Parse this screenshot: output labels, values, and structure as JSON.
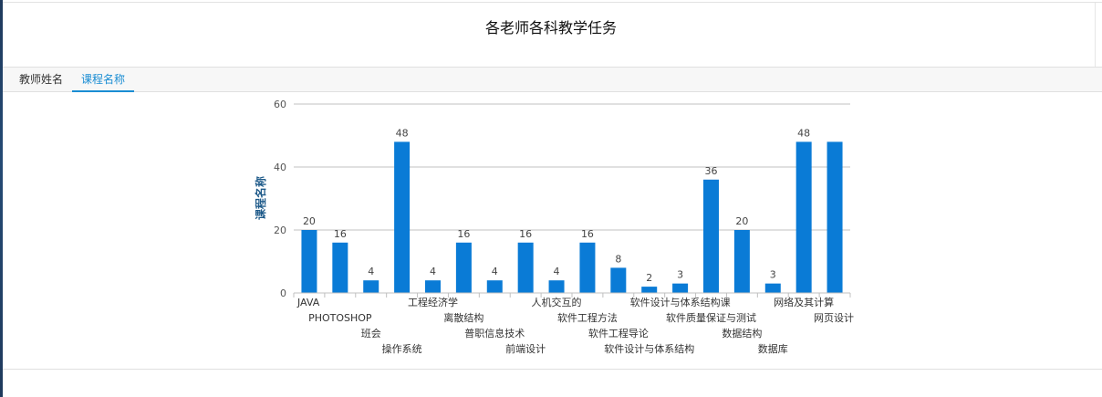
{
  "page": {
    "title": "各老师各科教学任务"
  },
  "tabs": [
    {
      "label": "教师姓名",
      "active": false
    },
    {
      "label": "课程名称",
      "active": true
    }
  ],
  "colors": {
    "bar": "#0a7bd6",
    "tab_active": "#1a8dd3",
    "ylabel": "#1f5b8a"
  },
  "chart_data": {
    "type": "bar",
    "title": "",
    "xlabel": "",
    "ylabel": "课程名称",
    "ylim": [
      0,
      60
    ],
    "yticks": [
      0,
      20,
      40,
      60
    ],
    "grid": true,
    "categories": [
      "JAVA",
      "PHOTOSHOP",
      "班会",
      "操作系统",
      "工程经济学",
      "离散结构",
      "普职信息技术",
      "前端设计",
      "人机交互的",
      "软件工程方法",
      "软件工程导论",
      "软件设计与体系结构",
      "软件设计与体系结构课",
      "软件质量保证与测试",
      "数据结构",
      "数据库",
      "网络及其计算",
      "网页设计"
    ],
    "values": [
      20,
      16,
      4,
      48,
      4,
      16,
      4,
      16,
      4,
      16,
      8,
      2,
      3,
      36,
      20,
      3,
      48,
      48
    ],
    "data_labels": [
      {
        "index": 0,
        "text": "20"
      },
      {
        "index": 1,
        "text": "16"
      },
      {
        "index": 2,
        "text": "4"
      },
      {
        "index": 3,
        "text": "48"
      },
      {
        "index": 4,
        "text": "4"
      },
      {
        "index": 5,
        "text": "16"
      },
      {
        "index": 6,
        "text": "4"
      },
      {
        "index": 7,
        "text": "16"
      },
      {
        "index": 8,
        "text": "4"
      },
      {
        "index": 9,
        "text": "16"
      },
      {
        "index": 10,
        "text": "8"
      },
      {
        "index": 11,
        "text": "2"
      },
      {
        "index": 12,
        "text": "3"
      },
      {
        "index": 13,
        "text": "36"
      },
      {
        "index": 14,
        "text": "20"
      },
      {
        "index": 15,
        "text": "3"
      },
      {
        "index": 16,
        "text": "48"
      }
    ]
  }
}
